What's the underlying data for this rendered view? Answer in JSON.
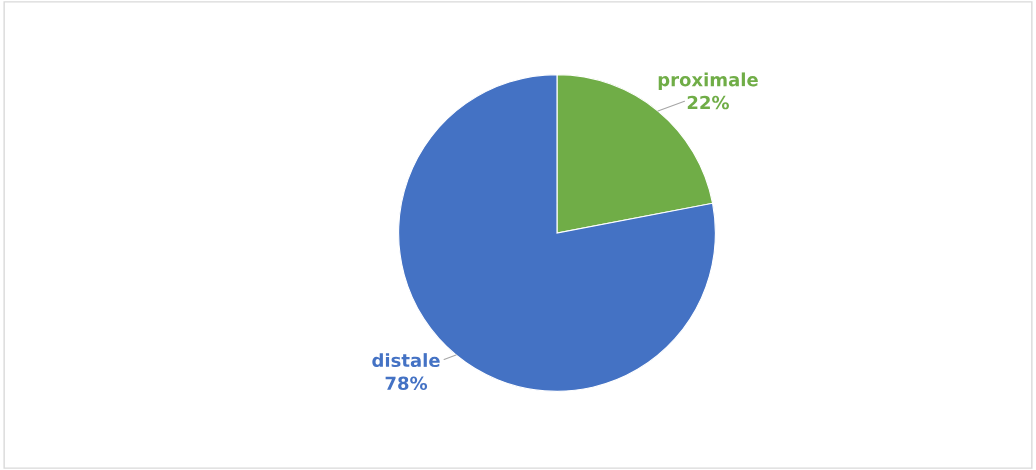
{
  "chart_data": {
    "type": "pie",
    "categories": [
      "proximale",
      "distale"
    ],
    "values": [
      22,
      78
    ],
    "colors": [
      "#70ad47",
      "#4472c4"
    ],
    "value_labels": [
      "22%",
      "78%"
    ]
  }
}
